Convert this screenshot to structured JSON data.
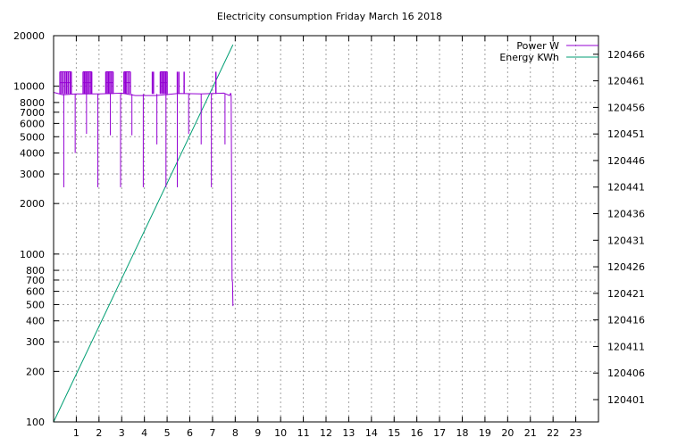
{
  "chart_data": {
    "type": "line",
    "title": "Electricity consumption Friday March 16 2018",
    "xlabel": "",
    "ylabel": "",
    "xlim": [
      0,
      24
    ],
    "x_ticks": [
      1,
      2,
      3,
      4,
      5,
      6,
      7,
      8,
      9,
      10,
      11,
      12,
      13,
      14,
      15,
      16,
      17,
      18,
      19,
      20,
      21,
      22,
      23
    ],
    "y_left": {
      "scale": "log",
      "lim": [
        100,
        20000
      ],
      "ticks": [
        100,
        200,
        300,
        400,
        500,
        600,
        700,
        800,
        1000,
        2000,
        3000,
        4000,
        5000,
        6000,
        7000,
        8000,
        10000,
        20000
      ]
    },
    "y_right": {
      "scale": "linear",
      "lim": [
        120396.8,
        120469.5
      ],
      "ticks": [
        120401,
        120406,
        120411,
        120416,
        120421,
        120426,
        120431,
        120436,
        120441,
        120446,
        120451,
        120456,
        120461,
        120466
      ]
    },
    "grid": true,
    "legend_position": "top-right",
    "series": [
      {
        "name": "Power W",
        "axis": "left",
        "color": "#9400d3",
        "baseline": [
          [
            0,
            9200
          ],
          [
            0.4,
            8900
          ],
          [
            1,
            9000
          ],
          [
            2,
            9000
          ],
          [
            3,
            9100
          ],
          [
            3.6,
            8800
          ],
          [
            4.5,
            8800
          ],
          [
            5.5,
            9050
          ],
          [
            6.5,
            9000
          ],
          [
            7.5,
            9100
          ],
          [
            7.75,
            8800
          ],
          [
            7.8,
            9100
          ]
        ],
        "spikes": [
          [
            0.28,
            12200
          ],
          [
            0.35,
            12200
          ],
          [
            0.42,
            12200
          ],
          [
            0.5,
            12200
          ],
          [
            0.57,
            12200
          ],
          [
            0.64,
            12200
          ],
          [
            0.72,
            12200
          ],
          [
            0.78,
            12200
          ],
          [
            1.3,
            12200
          ],
          [
            1.36,
            12200
          ],
          [
            1.42,
            12200
          ],
          [
            1.48,
            12200
          ],
          [
            1.55,
            12200
          ],
          [
            1.62,
            12200
          ],
          [
            1.68,
            12200
          ],
          [
            2.3,
            12200
          ],
          [
            2.36,
            12200
          ],
          [
            2.42,
            12200
          ],
          [
            2.48,
            12200
          ],
          [
            2.55,
            12200
          ],
          [
            2.62,
            12200
          ],
          [
            3.1,
            12200
          ],
          [
            3.16,
            12200
          ],
          [
            3.22,
            12200
          ],
          [
            3.3,
            12200
          ],
          [
            3.38,
            12200
          ],
          [
            4.35,
            12200
          ],
          [
            4.4,
            12200
          ],
          [
            4.7,
            12200
          ],
          [
            4.76,
            12200
          ],
          [
            4.82,
            12200
          ],
          [
            4.88,
            12200
          ],
          [
            4.94,
            12200
          ],
          [
            5.0,
            12200
          ],
          [
            5.45,
            12200
          ],
          [
            5.52,
            12200
          ],
          [
            5.75,
            12200
          ],
          [
            7.15,
            12200
          ]
        ],
        "dips": [
          [
            0.45,
            2500
          ],
          [
            0.95,
            4000
          ],
          [
            1.45,
            5200
          ],
          [
            1.95,
            2500
          ],
          [
            2.5,
            5100
          ],
          [
            2.95,
            2500
          ],
          [
            3.45,
            5100
          ],
          [
            3.95,
            2500
          ],
          [
            4.55,
            4500
          ],
          [
            4.95,
            2500
          ],
          [
            5.45,
            2500
          ],
          [
            5.95,
            5200
          ],
          [
            6.5,
            4500
          ],
          [
            6.95,
            2500
          ],
          [
            7.55,
            4500
          ]
        ],
        "tail": [
          [
            7.8,
            9100
          ],
          [
            7.82,
            8800
          ],
          [
            7.86,
            700
          ],
          [
            7.88,
            680
          ],
          [
            7.9,
            490
          ]
        ]
      },
      {
        "name": "Energy KWh",
        "axis": "right",
        "color": "#009e73",
        "points": [
          [
            0,
            120396.8
          ],
          [
            7.9,
            120467.8
          ]
        ]
      }
    ]
  }
}
